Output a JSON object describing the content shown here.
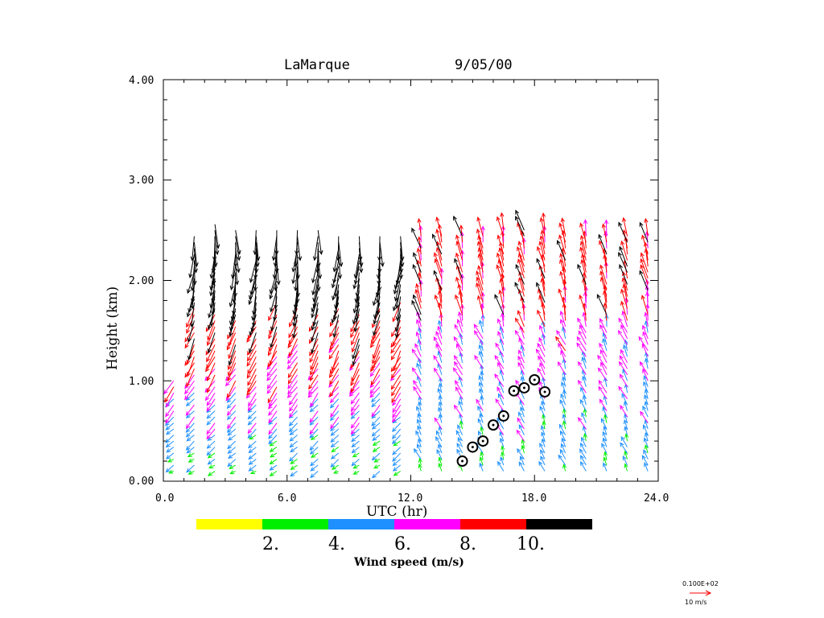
{
  "chart_data": {
    "type": "wind-profile-barbs",
    "title_site": "LaMarque",
    "title_date": "9/05/00",
    "xlabel": "UTC (hr)",
    "ylabel": "Height (km)",
    "xlim": [
      0,
      24
    ],
    "ylim": [
      0,
      4
    ],
    "x_ticks": [
      "0.0",
      "6.0",
      "12.0",
      "18.0",
      "24.0"
    ],
    "y_ticks": [
      "0.00",
      "1.00",
      "2.00",
      "3.00",
      "4.00"
    ],
    "colorbar": {
      "title": "Wind speed (m/s)",
      "labels": [
        "2.",
        "4.",
        "6.",
        "8.",
        "10."
      ],
      "colors": [
        "#ffff00",
        "#00ee00",
        "#1e90ff",
        "#ff00ff",
        "#ff0000",
        "#000000"
      ]
    },
    "reference_vector": {
      "label": "0.100E+02",
      "units": "10 m/s",
      "color": "#ff0000"
    },
    "profile_times_hr": [
      0.5,
      1.5,
      2.5,
      3.5,
      4.5,
      5.5,
      6.5,
      7.5,
      8.5,
      9.5,
      10.5,
      11.5,
      12.5,
      13.5,
      14.5,
      15.5,
      16.5,
      17.5,
      18.5,
      19.5,
      20.5,
      21.5,
      22.5,
      23.5
    ],
    "max_height_km": [
      1.05,
      2.45,
      2.6,
      2.55,
      2.55,
      2.55,
      2.55,
      2.55,
      2.5,
      2.5,
      2.5,
      2.5,
      2.5,
      2.5,
      2.5,
      2.5,
      2.55,
      2.55,
      2.55,
      2.5,
      2.5,
      2.45,
      2.45,
      2.5
    ],
    "mixing_height_markers": [
      {
        "x": 14.5,
        "y": 0.2
      },
      {
        "x": 15.0,
        "y": 0.34
      },
      {
        "x": 15.5,
        "y": 0.4
      },
      {
        "x": 16.0,
        "y": 0.56
      },
      {
        "x": 16.5,
        "y": 0.65
      },
      {
        "x": 17.0,
        "y": 0.9
      },
      {
        "x": 17.5,
        "y": 0.93
      },
      {
        "x": 18.0,
        "y": 1.01
      },
      {
        "x": 18.5,
        "y": 0.89
      }
    ]
  }
}
